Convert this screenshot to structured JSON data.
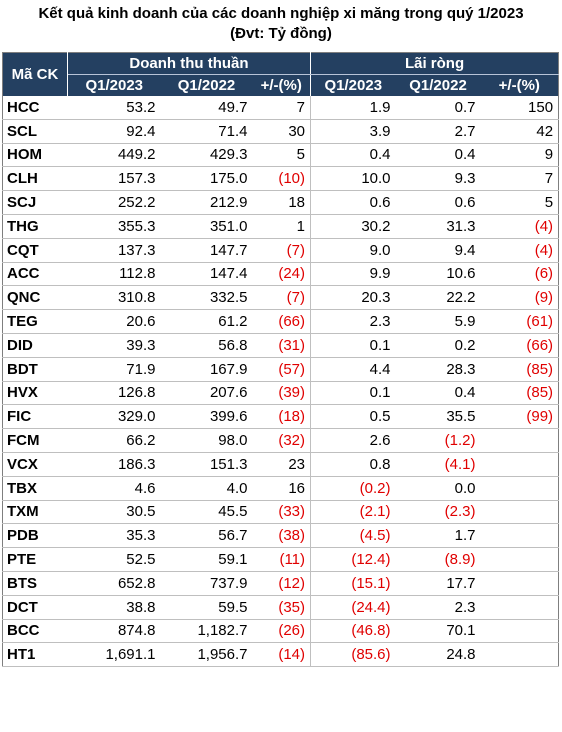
{
  "title_line1": "Kết quả kinh doanh của các doanh nghiệp xi măng trong quý 1/2023",
  "title_line2": "(Đvt: Tỷ đồng)",
  "header": {
    "ticker": "Mã CK",
    "revenue_group": "Doanh thu thuần",
    "profit_group": "Lãi ròng",
    "q1_2023": "Q1/2023",
    "q1_2022": "Q1/2022",
    "change": "+/-(%)"
  },
  "rows": [
    {
      "code": "HCC",
      "rev23": "53.2",
      "rev22": "49.7",
      "revchg": "7",
      "np23": "1.9",
      "np22": "0.7",
      "npchg": "150"
    },
    {
      "code": "SCL",
      "rev23": "92.4",
      "rev22": "71.4",
      "revchg": "30",
      "np23": "3.9",
      "np22": "2.7",
      "npchg": "42"
    },
    {
      "code": "HOM",
      "rev23": "449.2",
      "rev22": "429.3",
      "revchg": "5",
      "np23": "0.4",
      "np22": "0.4",
      "npchg": "9"
    },
    {
      "code": "CLH",
      "rev23": "157.3",
      "rev22": "175.0",
      "revchg": "(10)",
      "np23": "10.0",
      "np22": "9.3",
      "npchg": "7"
    },
    {
      "code": "SCJ",
      "rev23": "252.2",
      "rev22": "212.9",
      "revchg": "18",
      "np23": "0.6",
      "np22": "0.6",
      "npchg": "5"
    },
    {
      "code": "THG",
      "rev23": "355.3",
      "rev22": "351.0",
      "revchg": "1",
      "np23": "30.2",
      "np22": "31.3",
      "npchg": "(4)"
    },
    {
      "code": "CQT",
      "rev23": "137.3",
      "rev22": "147.7",
      "revchg": "(7)",
      "np23": "9.0",
      "np22": "9.4",
      "npchg": "(4)"
    },
    {
      "code": "ACC",
      "rev23": "112.8",
      "rev22": "147.4",
      "revchg": "(24)",
      "np23": "9.9",
      "np22": "10.6",
      "npchg": "(6)"
    },
    {
      "code": "QNC",
      "rev23": "310.8",
      "rev22": "332.5",
      "revchg": "(7)",
      "np23": "20.3",
      "np22": "22.2",
      "npchg": "(9)"
    },
    {
      "code": "TEG",
      "rev23": "20.6",
      "rev22": "61.2",
      "revchg": "(66)",
      "np23": "2.3",
      "np22": "5.9",
      "npchg": "(61)"
    },
    {
      "code": "DID",
      "rev23": "39.3",
      "rev22": "56.8",
      "revchg": "(31)",
      "np23": "0.1",
      "np22": "0.2",
      "npchg": "(66)"
    },
    {
      "code": "BDT",
      "rev23": "71.9",
      "rev22": "167.9",
      "revchg": "(57)",
      "np23": "4.4",
      "np22": "28.3",
      "npchg": "(85)"
    },
    {
      "code": "HVX",
      "rev23": "126.8",
      "rev22": "207.6",
      "revchg": "(39)",
      "np23": "0.1",
      "np22": "0.4",
      "npchg": "(85)"
    },
    {
      "code": "FIC",
      "rev23": "329.0",
      "rev22": "399.6",
      "revchg": "(18)",
      "np23": "0.5",
      "np22": "35.5",
      "npchg": "(99)"
    },
    {
      "code": "FCM",
      "rev23": "66.2",
      "rev22": "98.0",
      "revchg": "(32)",
      "np23": "2.6",
      "np22": "(1.2)",
      "npchg": ""
    },
    {
      "code": "VCX",
      "rev23": "186.3",
      "rev22": "151.3",
      "revchg": "23",
      "np23": "0.8",
      "np22": "(4.1)",
      "npchg": ""
    },
    {
      "code": "TBX",
      "rev23": "4.6",
      "rev22": "4.0",
      "revchg": "16",
      "np23": "(0.2)",
      "np22": "0.0",
      "npchg": ""
    },
    {
      "code": "TXM",
      "rev23": "30.5",
      "rev22": "45.5",
      "revchg": "(33)",
      "np23": "(2.1)",
      "np22": "(2.3)",
      "npchg": ""
    },
    {
      "code": "PDB",
      "rev23": "35.3",
      "rev22": "56.7",
      "revchg": "(38)",
      "np23": "(4.5)",
      "np22": "1.7",
      "npchg": ""
    },
    {
      "code": "PTE",
      "rev23": "52.5",
      "rev22": "59.1",
      "revchg": "(11)",
      "np23": "(12.4)",
      "np22": "(8.9)",
      "npchg": ""
    },
    {
      "code": "BTS",
      "rev23": "652.8",
      "rev22": "737.9",
      "revchg": "(12)",
      "np23": "(15.1)",
      "np22": "17.7",
      "npchg": ""
    },
    {
      "code": "DCT",
      "rev23": "38.8",
      "rev22": "59.5",
      "revchg": "(35)",
      "np23": "(24.4)",
      "np22": "2.3",
      "npchg": ""
    },
    {
      "code": "BCC",
      "rev23": "874.8",
      "rev22": "1,182.7",
      "revchg": "(26)",
      "np23": "(46.8)",
      "np22": "70.1",
      "npchg": ""
    },
    {
      "code": "HT1",
      "rev23": "1,691.1",
      "rev22": "1,956.7",
      "revchg": "(14)",
      "np23": "(85.6)",
      "np22": "24.8",
      "npchg": ""
    }
  ],
  "colors": {
    "header_bg": "#244061",
    "header_text": "#ffffff",
    "negative": "#e00000"
  }
}
